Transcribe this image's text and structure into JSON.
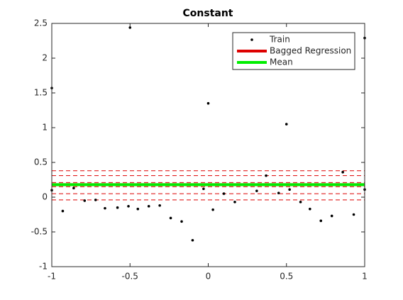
{
  "chart_data": {
    "type": "scatter",
    "title": "Constant",
    "xlim": [
      -1,
      1
    ],
    "ylim": [
      -1,
      2.5
    ],
    "xticks": [
      -1,
      -0.5,
      0,
      0.5,
      1
    ],
    "yticks": [
      -1,
      -0.5,
      0,
      0.5,
      1,
      1.5,
      2,
      2.5
    ],
    "legend": "upper right",
    "series": [
      {
        "name": "Train",
        "color": "#000000",
        "x": [
          -1,
          -1,
          -0.93,
          -0.86,
          -0.79,
          -0.72,
          -0.66,
          -0.58,
          -0.51,
          -0.5,
          -0.45,
          -0.38,
          -0.31,
          -0.24,
          -0.17,
          -0.1,
          -0.03,
          0,
          0.03,
          0.1,
          0.17,
          0.31,
          0.37,
          0.45,
          0.5,
          0.52,
          0.59,
          0.65,
          0.72,
          0.79,
          0.86,
          0.93,
          1,
          1
        ],
        "values": [
          1.57,
          0.1,
          -0.2,
          0.13,
          -0.05,
          -0.04,
          -0.16,
          -0.15,
          -0.13,
          2.44,
          -0.17,
          -0.13,
          -0.12,
          -0.3,
          -0.35,
          -0.62,
          0.12,
          1.35,
          -0.18,
          0.05,
          -0.07,
          0.09,
          0.31,
          0.06,
          1.05,
          0.11,
          -0.07,
          -0.17,
          -0.34,
          -0.27,
          0.36,
          -0.25,
          2.29,
          0.11
        ]
      },
      {
        "name": "Bagged Regression",
        "color": "#dd0000",
        "value": 0.18,
        "band_values": [
          0.38,
          0.31,
          0.21,
          0.15,
          0.05,
          -0.04
        ]
      },
      {
        "name": "Mean",
        "color": "#00ee00",
        "value": 0.18
      }
    ]
  }
}
